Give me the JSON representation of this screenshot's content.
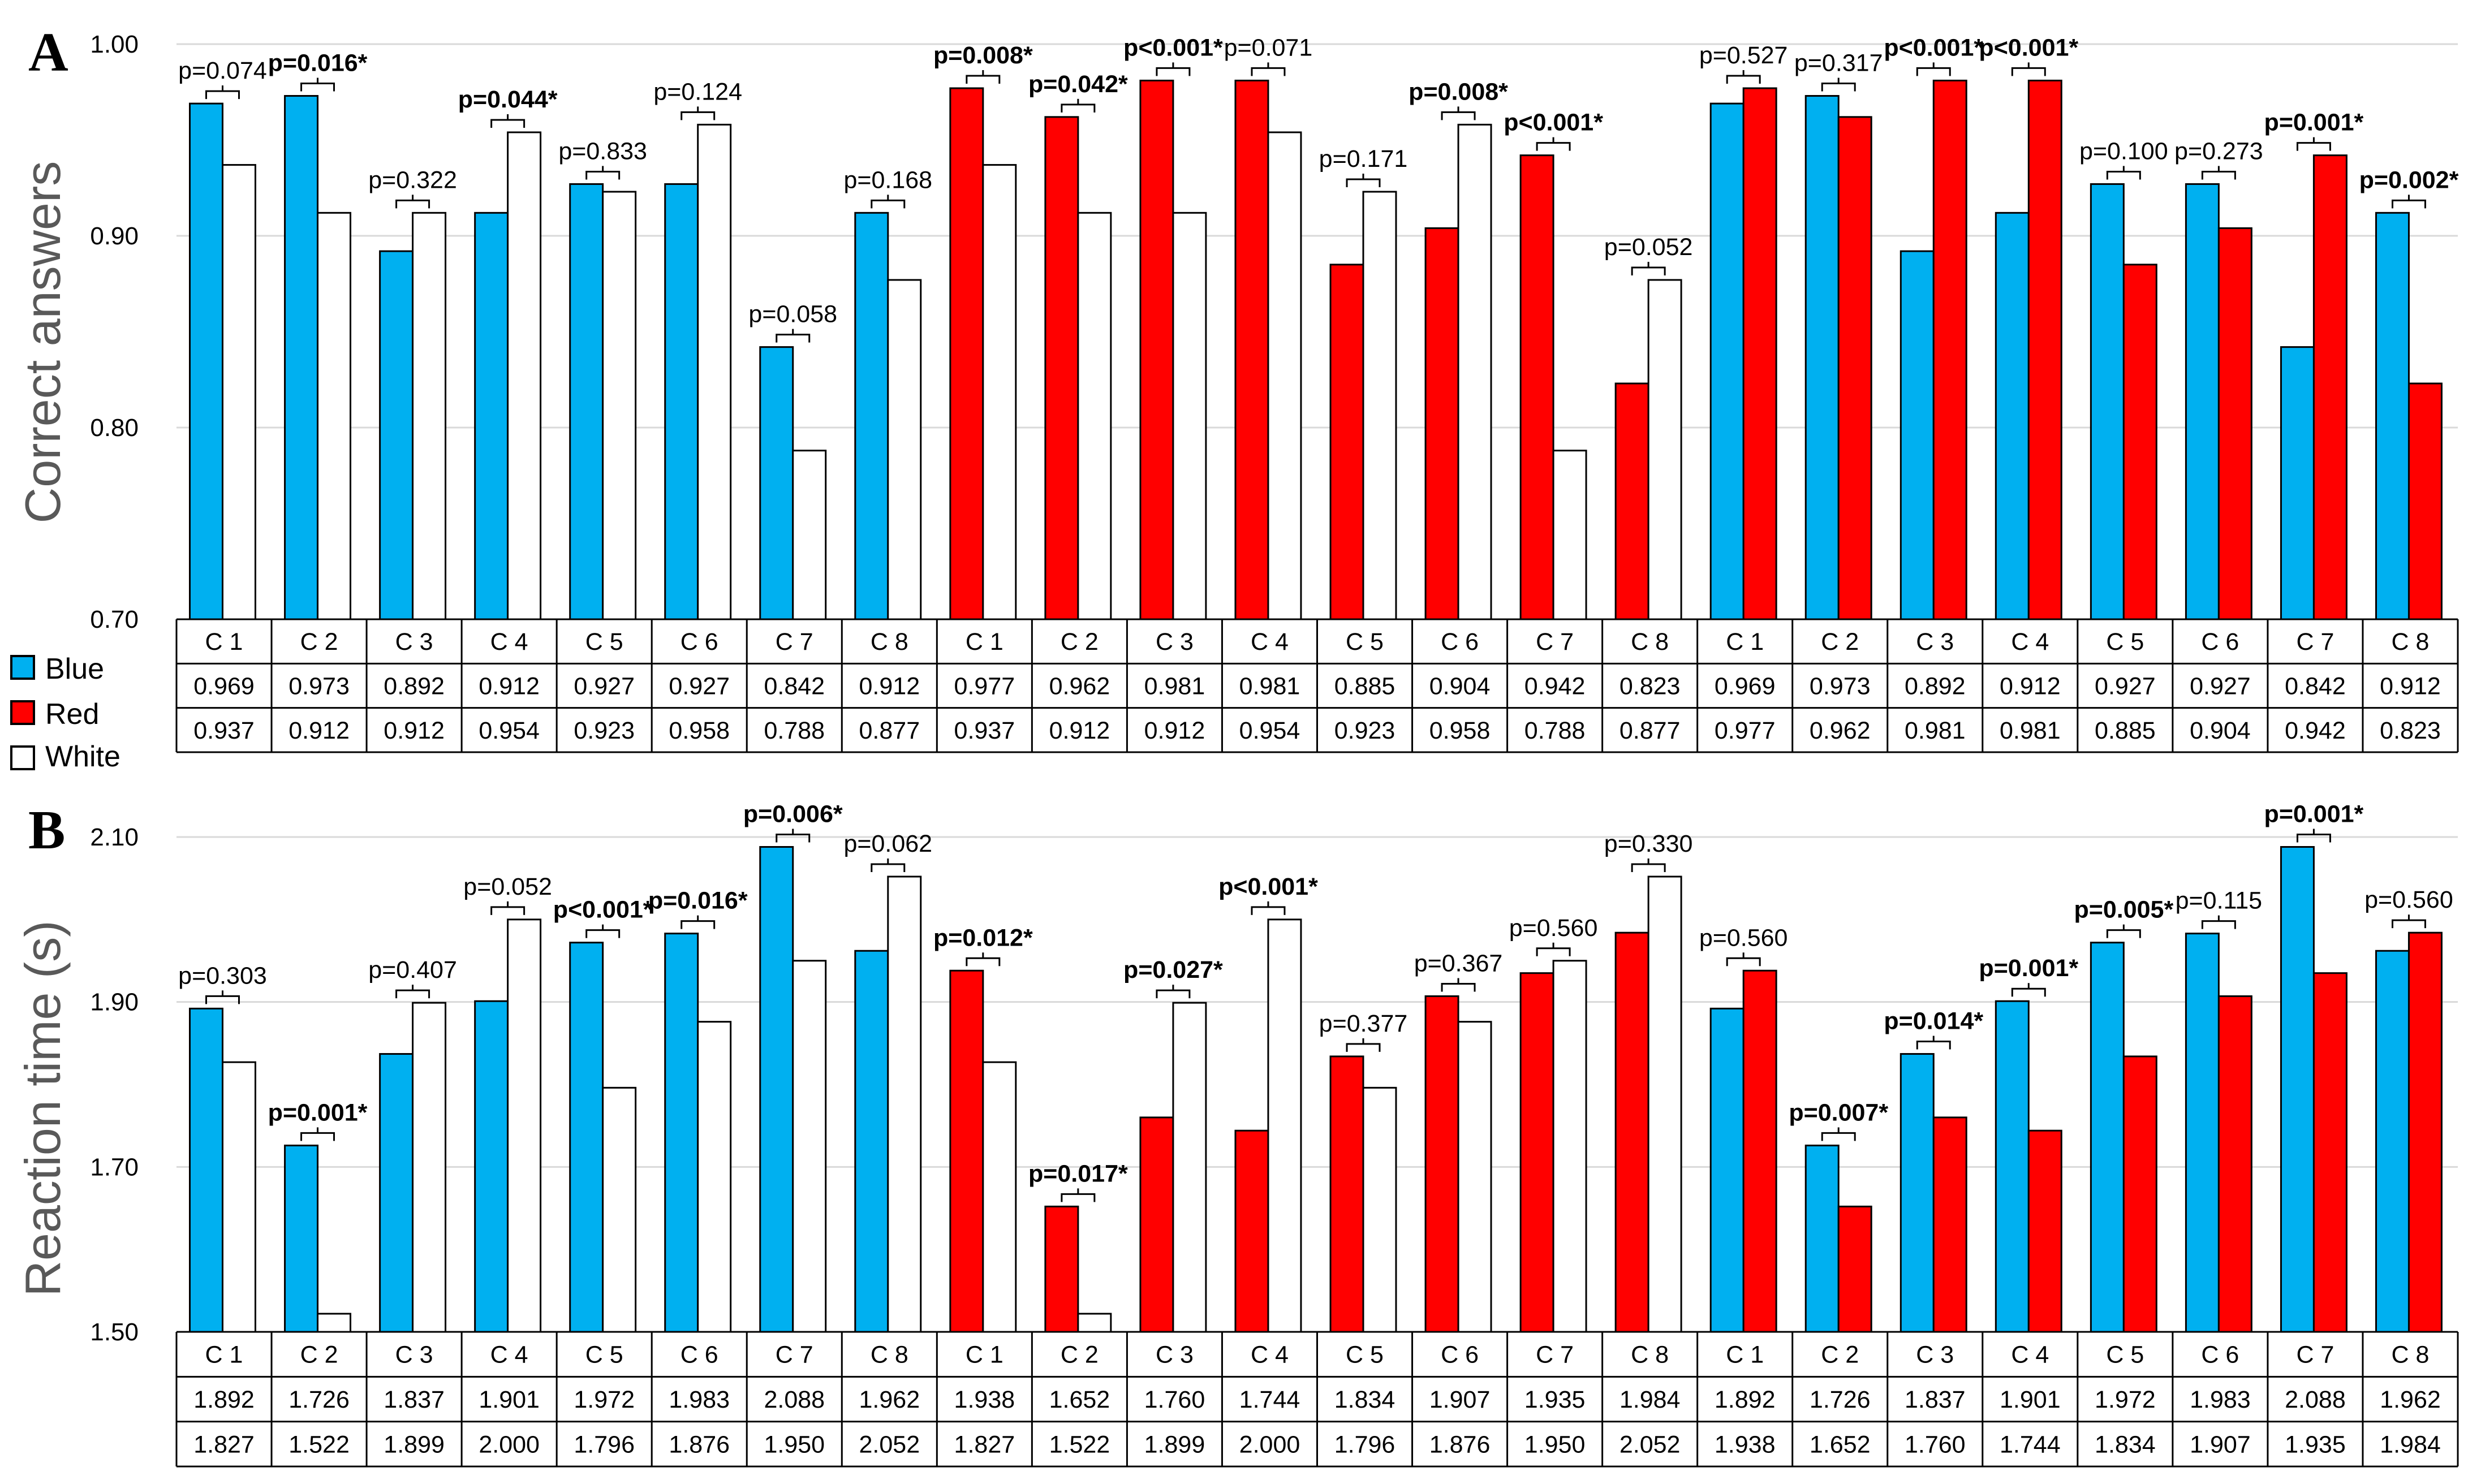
{
  "colors": {
    "blue": "#00b0f0",
    "red": "#ff0000",
    "white": "#ffffff",
    "stroke": "#000000",
    "grid": "#d9d9d9"
  },
  "legend": [
    {
      "key": "blue",
      "label": "Blue",
      "color": "#00b0f0"
    },
    {
      "key": "red",
      "label": "Red",
      "color": "#ff0000"
    },
    {
      "key": "white",
      "label": "White",
      "color": "#ffffff"
    }
  ],
  "chart_data": [
    {
      "type": "bar",
      "panel": "A",
      "ylabel": "Correct answers",
      "ylim": [
        0.7,
        1.0
      ],
      "yticks": [
        "0.70",
        "0.80",
        "0.90",
        "1.00"
      ],
      "grid": true,
      "categories": [
        "C 1",
        "C 2",
        "C 3",
        "C 4",
        "C 5",
        "C 6",
        "C 7",
        "C 8",
        "C 1",
        "C 2",
        "C 3",
        "C 4",
        "C 5",
        "C 6",
        "C 7",
        "C 8",
        "C 1",
        "C 2",
        "C 3",
        "C 4",
        "C 5",
        "C 6",
        "C 7",
        "C 8"
      ],
      "series": [
        {
          "name": "first",
          "colors": [
            "blue",
            "blue",
            "blue",
            "blue",
            "blue",
            "blue",
            "blue",
            "blue",
            "red",
            "red",
            "red",
            "red",
            "red",
            "red",
            "red",
            "red",
            "blue",
            "blue",
            "blue",
            "blue",
            "blue",
            "blue",
            "blue",
            "blue"
          ],
          "values": [
            0.969,
            0.973,
            0.892,
            0.912,
            0.927,
            0.927,
            0.842,
            0.912,
            0.977,
            0.962,
            0.981,
            0.981,
            0.885,
            0.904,
            0.942,
            0.823,
            0.969,
            0.973,
            0.892,
            0.912,
            0.927,
            0.927,
            0.842,
            0.912
          ],
          "labels": [
            "0.969",
            "0.973",
            "0.892",
            "0.912",
            "0.927",
            "0.927",
            "0.842",
            "0.912",
            "0.977",
            "0.962",
            "0.981",
            "0.981",
            "0.885",
            "0.904",
            "0.942",
            "0.823",
            "0.969",
            "0.973",
            "0.892",
            "0.912",
            "0.927",
            "0.927",
            "0.842",
            "0.912"
          ]
        },
        {
          "name": "second",
          "colors": [
            "white",
            "white",
            "white",
            "white",
            "white",
            "white",
            "white",
            "white",
            "white",
            "white",
            "white",
            "white",
            "white",
            "white",
            "white",
            "white",
            "red",
            "red",
            "red",
            "red",
            "red",
            "red",
            "red",
            "red"
          ],
          "values": [
            0.937,
            0.912,
            0.912,
            0.954,
            0.923,
            0.958,
            0.788,
            0.877,
            0.937,
            0.912,
            0.912,
            0.954,
            0.923,
            0.958,
            0.788,
            0.877,
            0.977,
            0.962,
            0.981,
            0.981,
            0.885,
            0.904,
            0.942,
            0.823
          ],
          "labels": [
            "0.937",
            "0.912",
            "0.912",
            "0.954",
            "0.923",
            "0.958",
            "0.788",
            "0.877",
            "0.937",
            "0.912",
            "0.912",
            "0.954",
            "0.923",
            "0.958",
            "0.788",
            "0.877",
            "0.977",
            "0.962",
            "0.981",
            "0.981",
            "0.885",
            "0.904",
            "0.942",
            "0.823"
          ]
        }
      ],
      "pvalues": [
        "p=0.074",
        "p=0.016*",
        "p=0.322",
        "p=0.044*",
        "p=0.833",
        "p=0.124",
        "p=0.058",
        "p=0.168",
        "p=0.008*",
        "p=0.042*",
        "p<0.001*",
        "p=0.071",
        "p=0.171",
        "p=0.008*",
        "p<0.001*",
        "p=0.052",
        "p=0.527",
        "p=0.317",
        "p<0.001*",
        "p<0.001*",
        "p=0.100",
        "p=0.273",
        "p=0.001*",
        "p=0.002*"
      ],
      "significant": [
        false,
        true,
        false,
        true,
        false,
        false,
        false,
        false,
        true,
        true,
        true,
        false,
        false,
        true,
        true,
        false,
        false,
        false,
        true,
        true,
        false,
        false,
        true,
        true
      ]
    },
    {
      "type": "bar",
      "panel": "B",
      "ylabel": "Reaction time (s)",
      "ylim": [
        1.5,
        2.1
      ],
      "yticks": [
        "1.50",
        "1.70",
        "1.90",
        "2.10"
      ],
      "grid": true,
      "categories": [
        "C 1",
        "C 2",
        "C 3",
        "C 4",
        "C 5",
        "C 6",
        "C 7",
        "C 8",
        "C 1",
        "C 2",
        "C 3",
        "C 4",
        "C 5",
        "C 6",
        "C 7",
        "C 8",
        "C 1",
        "C 2",
        "C 3",
        "C 4",
        "C 5",
        "C 6",
        "C 7",
        "C 8"
      ],
      "series": [
        {
          "name": "first",
          "colors": [
            "blue",
            "blue",
            "blue",
            "blue",
            "blue",
            "blue",
            "blue",
            "blue",
            "red",
            "red",
            "red",
            "red",
            "red",
            "red",
            "red",
            "red",
            "blue",
            "blue",
            "blue",
            "blue",
            "blue",
            "blue",
            "blue",
            "blue"
          ],
          "values": [
            1.892,
            1.726,
            1.837,
            1.901,
            1.972,
            1.983,
            2.088,
            1.962,
            1.938,
            1.652,
            1.76,
            1.744,
            1.834,
            1.907,
            1.935,
            1.984,
            1.892,
            1.726,
            1.837,
            1.901,
            1.972,
            1.983,
            2.088,
            1.962
          ],
          "labels": [
            "1.892",
            "1.726",
            "1.837",
            "1.901",
            "1.972",
            "1.983",
            "2.088",
            "1.962",
            "1.938",
            "1.652",
            "1.760",
            "1.744",
            "1.834",
            "1.907",
            "1.935",
            "1.984",
            "1.892",
            "1.726",
            "1.837",
            "1.901",
            "1.972",
            "1.983",
            "2.088",
            "1.962"
          ]
        },
        {
          "name": "second",
          "colors": [
            "white",
            "white",
            "white",
            "white",
            "white",
            "white",
            "white",
            "white",
            "white",
            "white",
            "white",
            "white",
            "white",
            "white",
            "white",
            "white",
            "red",
            "red",
            "red",
            "red",
            "red",
            "red",
            "red",
            "red"
          ],
          "values": [
            1.827,
            1.522,
            1.899,
            2.0,
            1.796,
            1.876,
            1.95,
            2.052,
            1.827,
            1.522,
            1.899,
            2.0,
            1.796,
            1.876,
            1.95,
            2.052,
            1.938,
            1.652,
            1.76,
            1.744,
            1.834,
            1.907,
            1.935,
            1.984
          ],
          "labels": [
            "1.827",
            "1.522",
            "1.899",
            "2.000",
            "1.796",
            "1.876",
            "1.950",
            "2.052",
            "1.827",
            "1.522",
            "1.899",
            "2.000",
            "1.796",
            "1.876",
            "1.950",
            "2.052",
            "1.938",
            "1.652",
            "1.760",
            "1.744",
            "1.834",
            "1.907",
            "1.935",
            "1.984"
          ]
        }
      ],
      "pvalues": [
        "p=0.303",
        "p=0.001*",
        "p=0.407",
        "p=0.052",
        "p<0.001*",
        "p=0.016*",
        "p=0.006*",
        "p=0.062",
        "p=0.012*",
        "p=0.017*",
        "p=0.027*",
        "p<0.001*",
        "p=0.377",
        "p=0.367",
        "p=0.560",
        "p=0.330",
        "p=0.560",
        "p=0.007*",
        "p=0.014*",
        "p=0.001*",
        "p=0.005*",
        "p=0.115",
        "p=0.001*",
        "p=0.560"
      ],
      "significant": [
        false,
        true,
        false,
        false,
        true,
        true,
        true,
        false,
        true,
        true,
        true,
        true,
        false,
        false,
        false,
        false,
        false,
        true,
        true,
        true,
        true,
        false,
        true,
        false
      ]
    }
  ]
}
